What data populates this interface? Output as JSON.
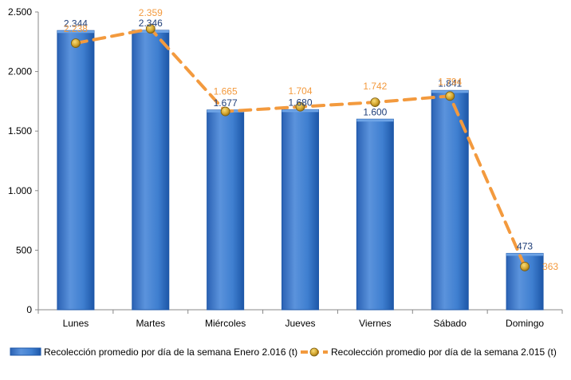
{
  "colors": {
    "bar_fill": "#3f7fd0",
    "bar_dark": "#1d57a8",
    "bar_light": "#6ea4e6",
    "line": "#f39a3e",
    "marker": "#d4a52e",
    "bar_label": "#1f3e78",
    "line_label": "#f39a3e",
    "axis": "#888888"
  },
  "chart_data": {
    "type": "bar",
    "categories": [
      "Lunes",
      "Martes",
      "Miércoles",
      "Jueves",
      "Viernes",
      "Sábado",
      "Domingo"
    ],
    "series": [
      {
        "name": "Recolección promedio por día de la semana Enero 2.016 (t)",
        "kind": "bar",
        "values": [
          2344,
          2346,
          1677,
          1680,
          1600,
          1841,
          473
        ],
        "labels": [
          "2.344",
          "2.346",
          "1.677",
          "1.680",
          "1.600",
          "1.841",
          "473"
        ]
      },
      {
        "name": "Recolección promedio por día de la semana 2.015 (t)",
        "kind": "line",
        "style": "dashed",
        "values": [
          2238,
          2359,
          1665,
          1704,
          1742,
          1794,
          363
        ],
        "labels": [
          "2.238",
          "2.359",
          "1.665",
          "1.704",
          "1.742",
          "1.794",
          "363"
        ]
      }
    ],
    "ylim": [
      0,
      2500
    ],
    "yticks": [
      0,
      500,
      1000,
      1500,
      2000,
      2500
    ],
    "ytick_labels": [
      "0",
      "500",
      "1.000",
      "1.500",
      "2.000",
      "2.500"
    ],
    "grid": false,
    "legend_position": "bottom",
    "title": "",
    "xlabel": "",
    "ylabel": ""
  }
}
